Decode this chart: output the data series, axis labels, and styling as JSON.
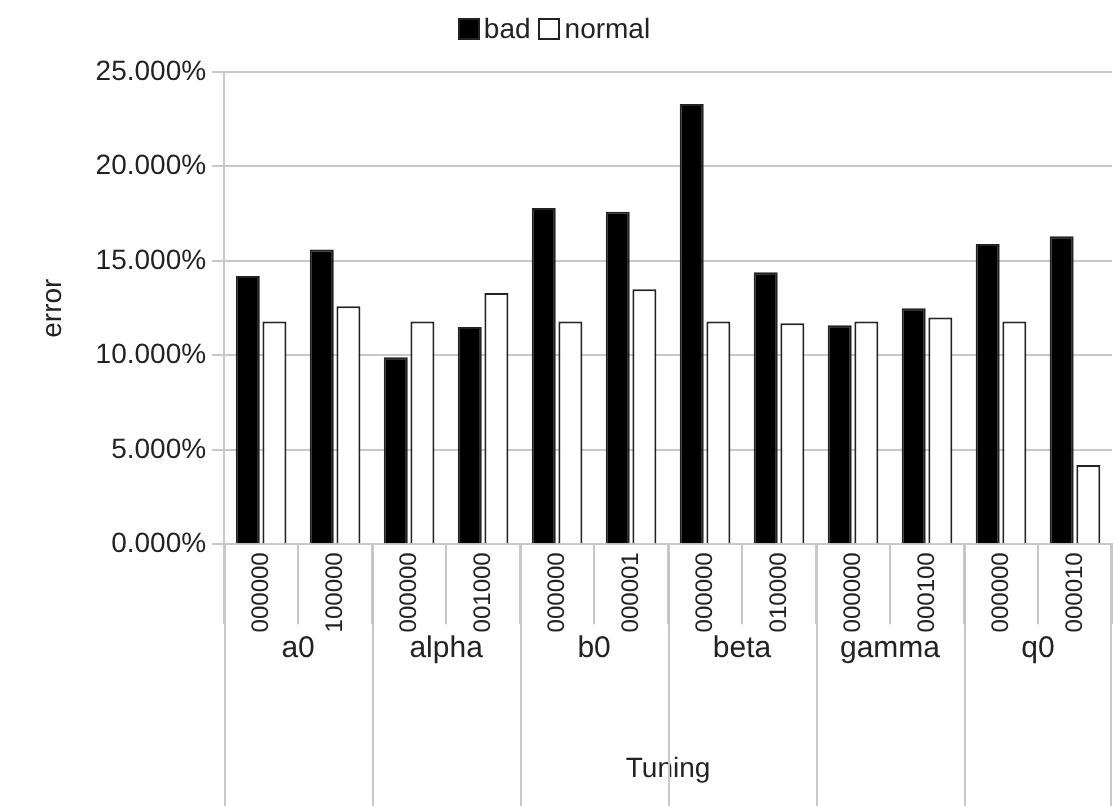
{
  "chart_data": {
    "type": "bar",
    "xlabel": "Tuning",
    "ylabel": "error",
    "categories": [
      "000000",
      "100000",
      "000000",
      "001000",
      "000000",
      "000001",
      "000000",
      "010000",
      "000000",
      "000100",
      "000000",
      "000010"
    ],
    "annotations": [
      "a0",
      "alpha",
      "b0",
      "beta",
      "gamma",
      "q0"
    ],
    "series": [
      {
        "name": "bad",
        "color": "#000000",
        "values": [
          14.2,
          15.6,
          9.9,
          11.5,
          17.8,
          17.6,
          23.3,
          14.4,
          11.6,
          12.5,
          15.9,
          16.3
        ]
      },
      {
        "name": "normal",
        "color": "#ffffff",
        "values": [
          11.8,
          12.6,
          11.8,
          13.3,
          11.8,
          13.5,
          11.8,
          11.7,
          11.8,
          12.0,
          11.8,
          4.2
        ]
      }
    ],
    "ylim": [
      0,
      25
    ],
    "yticks": [
      {
        "value": 0,
        "label": "0.000%"
      },
      {
        "value": 5,
        "label": "5.000%"
      },
      {
        "value": 10,
        "label": "10.000%"
      },
      {
        "value": 15,
        "label": "15.000%"
      },
      {
        "value": 20,
        "label": "20.000%"
      },
      {
        "value": 25,
        "label": "25.000%"
      }
    ],
    "grid": "y",
    "legend": "top"
  }
}
